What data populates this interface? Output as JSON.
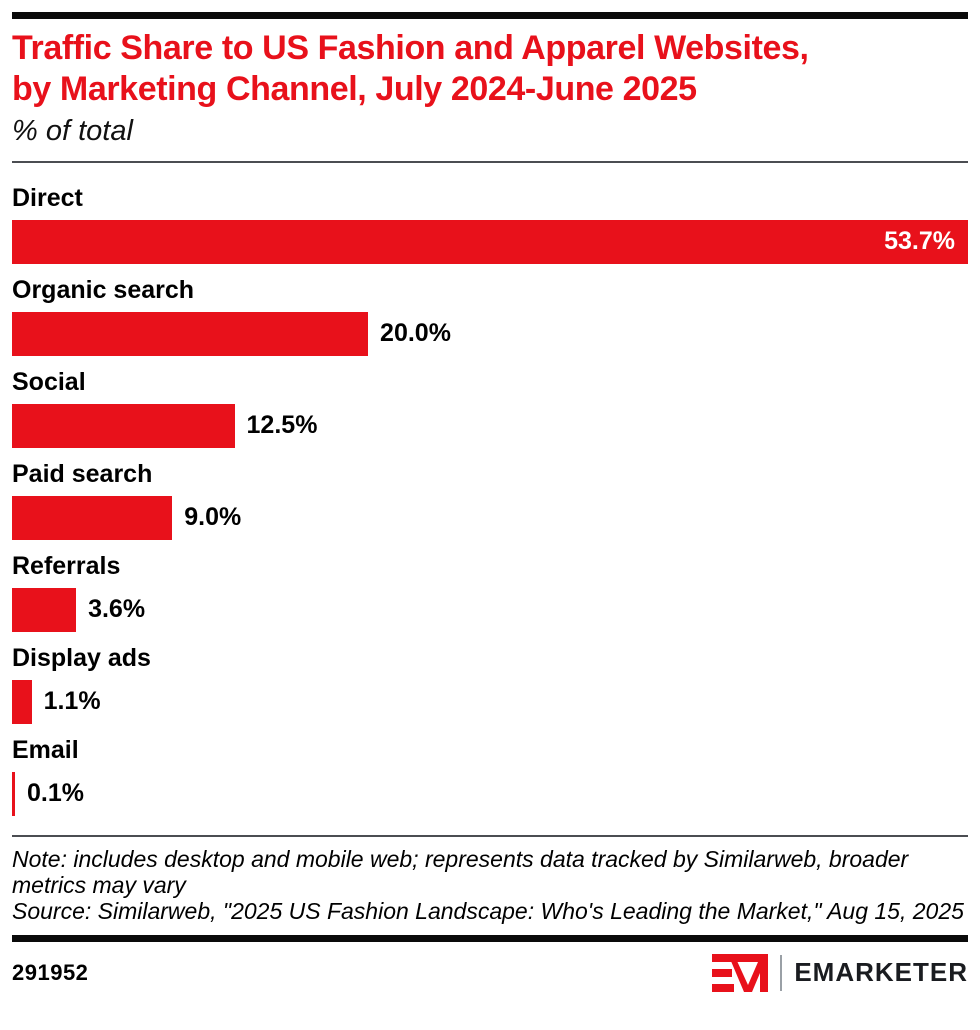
{
  "header": {
    "title_line1": "Traffic Share to US Fashion and Apparel Websites,",
    "title_line2": "by Marketing Channel, July 2024-June 2025",
    "subtitle": "% of total"
  },
  "chart_data": {
    "type": "bar",
    "orientation": "horizontal",
    "title": "Traffic Share to US Fashion and Apparel Websites, by Marketing Channel, July 2024-June 2025",
    "units": "% of total",
    "categories": [
      "Direct",
      "Organic search",
      "Social",
      "Paid search",
      "Referrals",
      "Display ads",
      "Email"
    ],
    "values": [
      53.7,
      20.0,
      12.5,
      9.0,
      3.6,
      1.1,
      0.1
    ],
    "labels": [
      "53.7%",
      "20.0%",
      "12.5%",
      "9.0%",
      "3.6%",
      "1.1%",
      "0.1%"
    ],
    "xlim": [
      0,
      53.7
    ],
    "bar_color": "#e8111b",
    "grid": false,
    "legend": "none"
  },
  "footer": {
    "note": "Note: includes desktop and mobile web; represents data tracked by Similarweb, broader metrics may vary",
    "source": "Source: Similarweb, \"2025 US Fashion Landscape: Who's Leading the Market,\" Aug 15, 2025",
    "chart_id": "291952",
    "brand": "EMARKETER"
  },
  "colors": {
    "accent": "#e8111b",
    "text": "#000000",
    "rule": "#0a0a0a",
    "divider": "#4b4d52"
  }
}
